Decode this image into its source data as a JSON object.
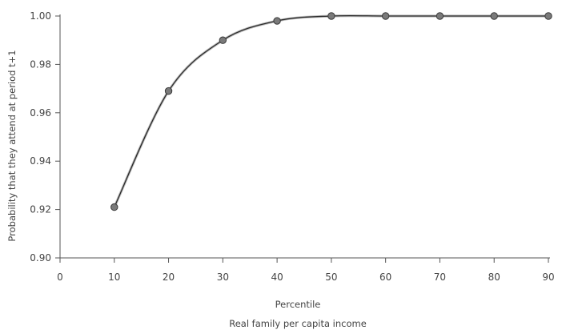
{
  "chart_data": {
    "type": "line",
    "xlabel": "Percentile",
    "xlabel2": "Real family per capita income",
    "ylabel": "Probability that they attend at period t+1",
    "xlim": [
      0,
      90
    ],
    "ylim": [
      0.9,
      1.0
    ],
    "xticks": [
      0,
      10,
      20,
      30,
      40,
      50,
      60,
      70,
      80,
      90
    ],
    "yticks": [
      0.9,
      0.92,
      0.94,
      0.96,
      0.98,
      1.0
    ],
    "xtick_labels": [
      "0",
      "10",
      "20",
      "30",
      "40",
      "50",
      "60",
      "70",
      "80",
      "90"
    ],
    "ytick_labels": [
      "0.90",
      "0.92",
      "0.94",
      "0.96",
      "0.98",
      "1.00"
    ],
    "grid": false,
    "series": [
      {
        "x": [
          10,
          20,
          30,
          40,
          50,
          60,
          70,
          80,
          90
        ],
        "values": [
          0.921,
          0.969,
          0.99,
          0.998,
          1.0,
          1.0,
          1.0,
          1.0,
          1.0
        ]
      }
    ]
  }
}
